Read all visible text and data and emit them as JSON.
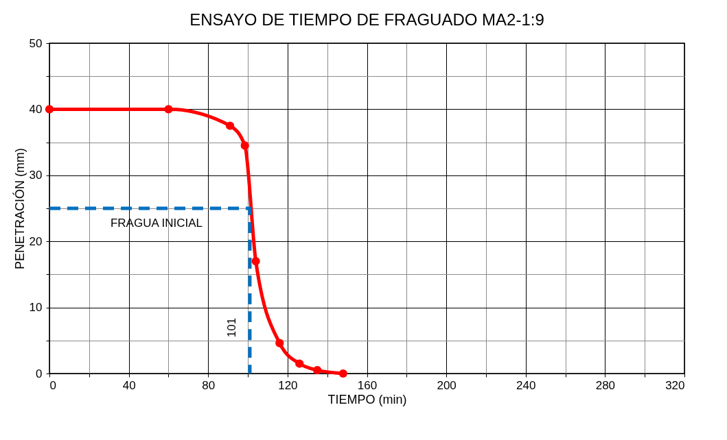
{
  "chart_data": {
    "type": "line",
    "title": "ENSAYO DE TIEMPO DE FRAGUADO MA2-1:9",
    "xlabel": "TIEMPO (min)",
    "ylabel": "PENETRACIÓN (mm)",
    "xlim": [
      0,
      320
    ],
    "ylim": [
      0,
      50
    ],
    "xticks": [
      0,
      {
        "value": 20,
        "label": null
      },
      40,
      {
        "value": 60,
        "label": null
      },
      80,
      {
        "value": 100,
        "label": null
      },
      120,
      {
        "value": 140,
        "label": null
      },
      160,
      {
        "value": 180,
        "label": null
      },
      200,
      {
        "value": 220,
        "label": null
      },
      240,
      {
        "value": 260,
        "label": null
      },
      280,
      {
        "value": 300,
        "label": null
      },
      320
    ],
    "yticks": [
      0,
      {
        "value": 5,
        "label": null
      },
      10,
      {
        "value": 15,
        "label": null
      },
      20,
      {
        "value": 25,
        "label": null
      },
      30,
      {
        "value": 35,
        "label": null
      },
      40,
      {
        "value": 45,
        "label": null
      },
      50
    ],
    "grid": true,
    "series": [
      {
        "color": "#ff0000",
        "marker": "circle",
        "line_style": "solid",
        "x": [
          0,
          60,
          91,
          98.5,
          104,
          116,
          126,
          135,
          148
        ],
        "values": [
          40,
          40,
          37.5,
          34.5,
          17,
          4.6,
          1.5,
          0.5,
          0
        ]
      },
      {
        "color": "#0070c0",
        "marker": "none",
        "line_style": "dashed",
        "x": [
          0,
          101,
          101
        ],
        "values": [
          25,
          25,
          0
        ]
      }
    ],
    "annotations": [
      "FRAGUA INICIAL",
      "101"
    ]
  }
}
